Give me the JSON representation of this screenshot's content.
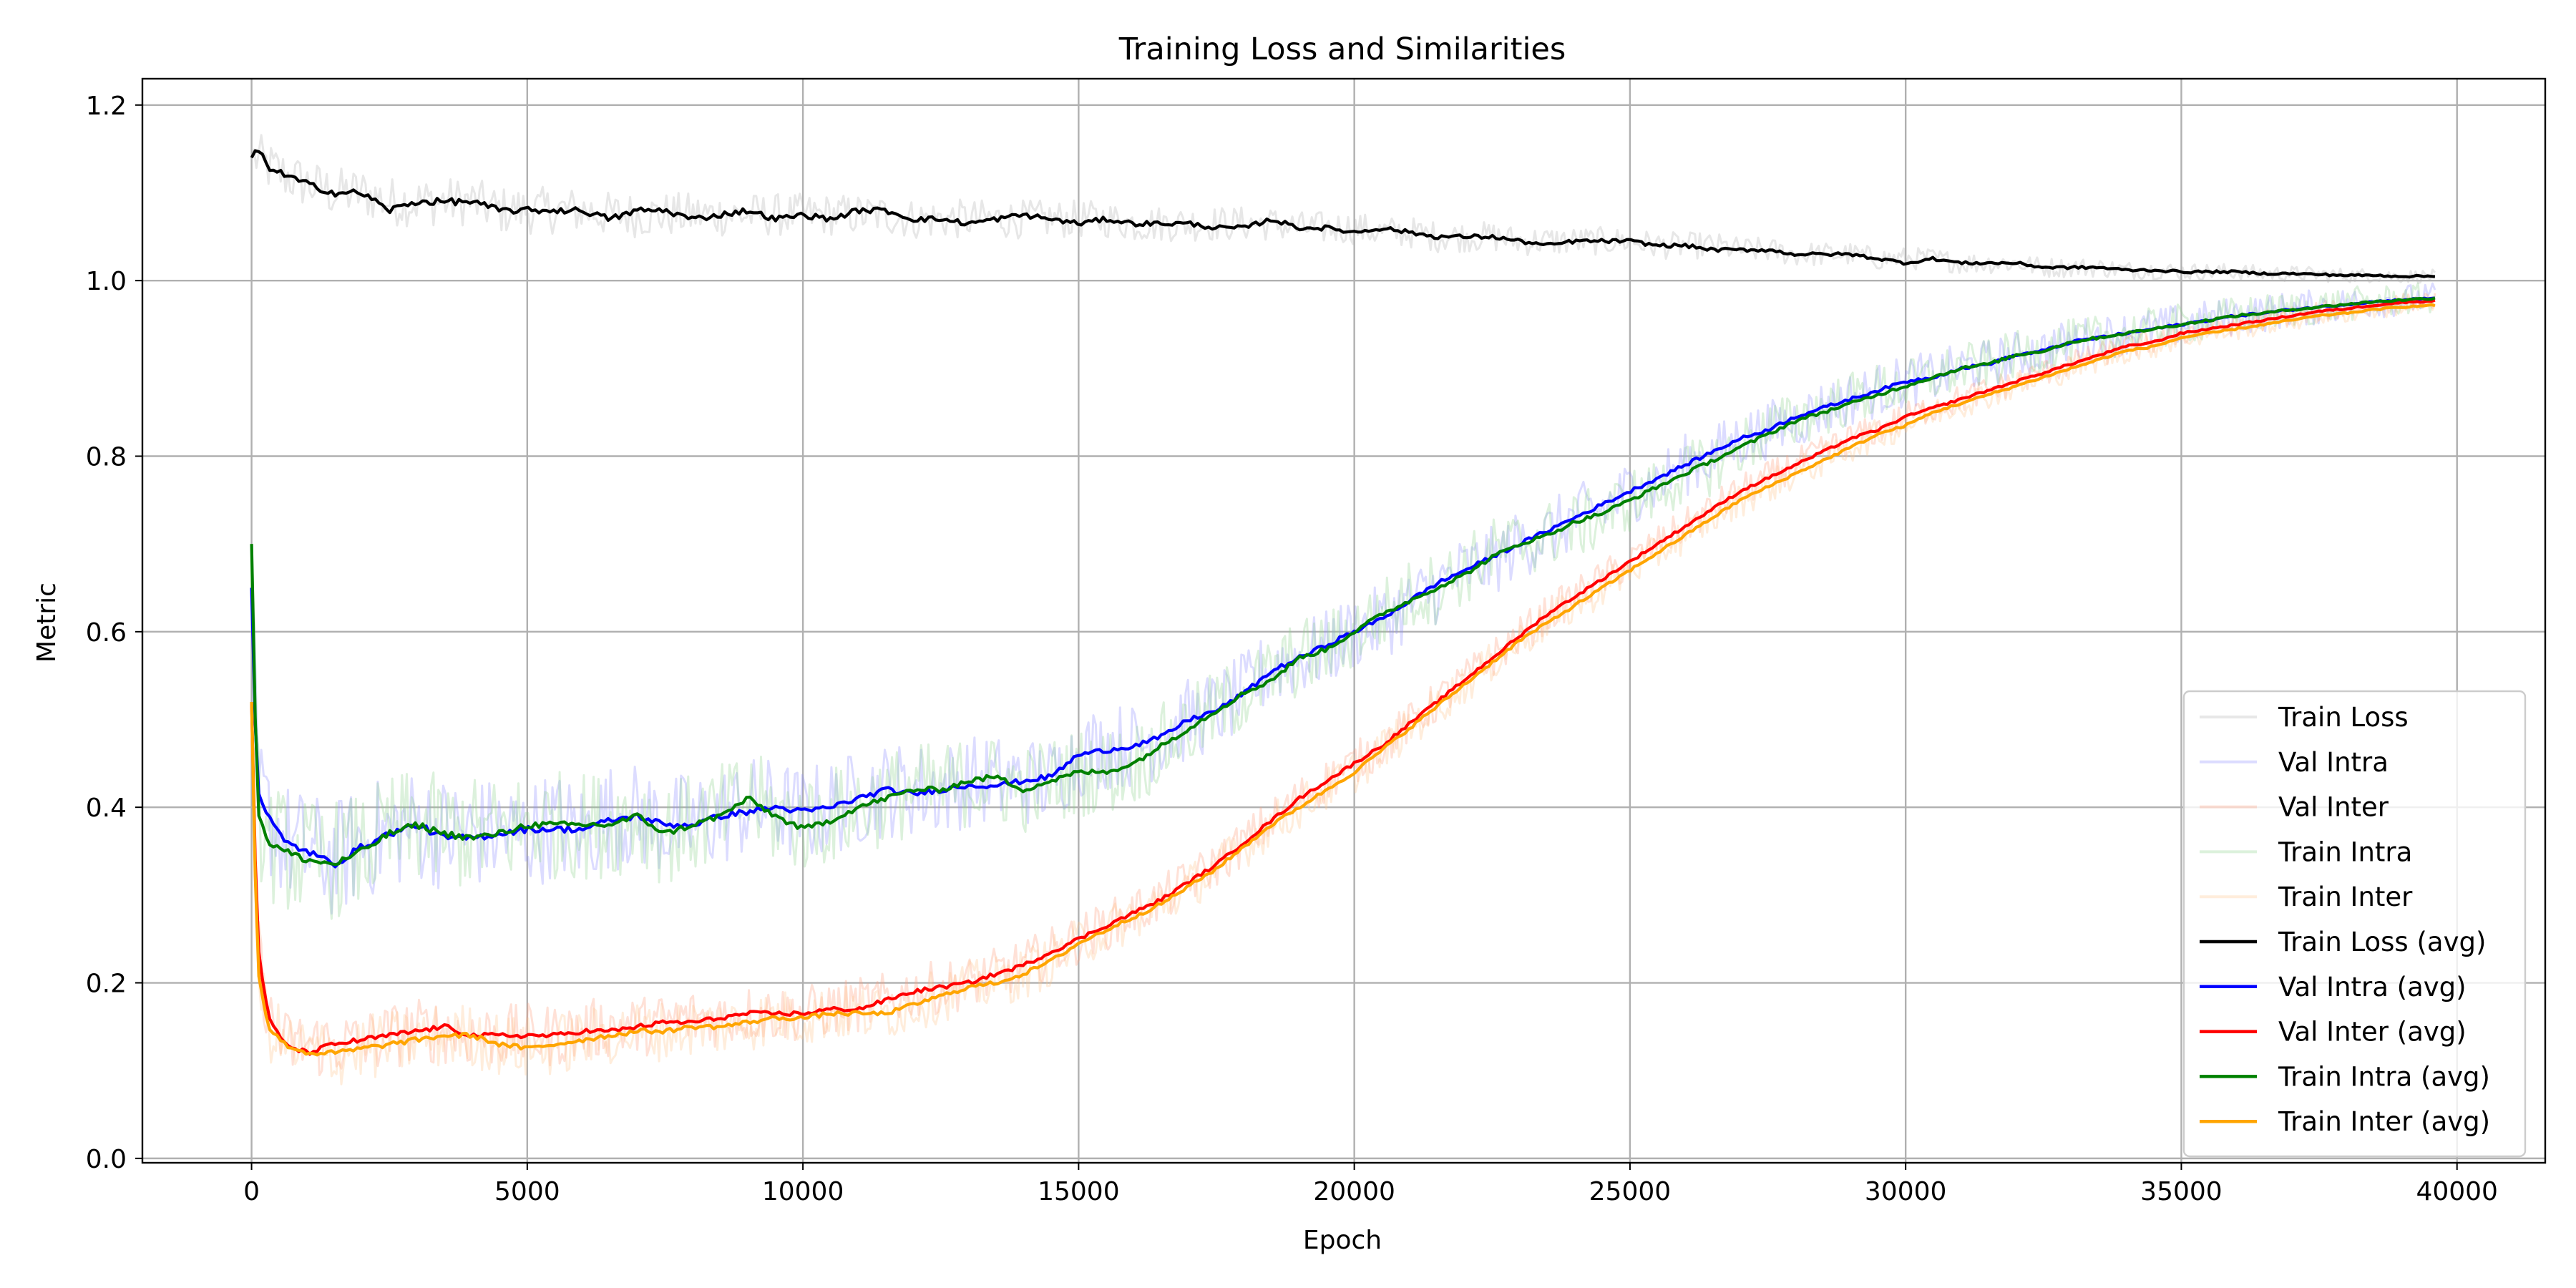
{
  "chart_data": {
    "type": "line",
    "title": "Training Loss and Similarities",
    "xlabel": "Epoch",
    "ylabel": "Metric",
    "xlim": [
      -1980,
      41600
    ],
    "ylim": [
      -0.005,
      1.23
    ],
    "xticks": [
      0,
      5000,
      10000,
      15000,
      20000,
      25000,
      30000,
      35000,
      40000
    ],
    "xtick_labels": [
      "0",
      "5000",
      "10000",
      "15000",
      "20000",
      "25000",
      "30000",
      "35000",
      "40000"
    ],
    "yticks": [
      0.0,
      0.2,
      0.4,
      0.6,
      0.8,
      1.0,
      1.2
    ],
    "ytick_labels": [
      "0.0",
      "0.2",
      "0.4",
      "0.6",
      "0.8",
      "1.0",
      "1.2"
    ],
    "grid": true,
    "legend_position": "lower-right",
    "x": [
      0,
      100,
      300,
      600,
      1000,
      1500,
      2000,
      2500,
      3000,
      3500,
      4000,
      4500,
      5000,
      5500,
      6000,
      6500,
      7000,
      7500,
      8000,
      8500,
      9000,
      9500,
      10000,
      10500,
      11000,
      11500,
      12000,
      12500,
      13000,
      13500,
      14000,
      14500,
      15000,
      15500,
      16000,
      16500,
      17000,
      17500,
      18000,
      18500,
      19000,
      19500,
      20000,
      20500,
      21000,
      21500,
      22000,
      22500,
      23000,
      23500,
      24000,
      24500,
      25000,
      25500,
      26000,
      26500,
      27000,
      27500,
      28000,
      28500,
      29000,
      29500,
      30000,
      30500,
      31000,
      31500,
      32000,
      32500,
      33000,
      33500,
      34000,
      34500,
      35000,
      35500,
      36000,
      36500,
      37000,
      37500,
      38000,
      38500,
      39000,
      39600
    ],
    "series": [
      {
        "name": "Train Loss",
        "color": "#b0b0b0",
        "opacity": 0.3,
        "noise": 0.03,
        "values": [
          1.14,
          1.14,
          1.13,
          1.12,
          1.11,
          1.1,
          1.1,
          1.09,
          1.09,
          1.09,
          1.09,
          1.08,
          1.08,
          1.08,
          1.08,
          1.075,
          1.075,
          1.075,
          1.075,
          1.075,
          1.075,
          1.075,
          1.075,
          1.075,
          1.075,
          1.075,
          1.07,
          1.07,
          1.07,
          1.07,
          1.07,
          1.07,
          1.07,
          1.07,
          1.065,
          1.065,
          1.065,
          1.065,
          1.065,
          1.065,
          1.06,
          1.06,
          1.06,
          1.055,
          1.055,
          1.05,
          1.05,
          1.05,
          1.045,
          1.045,
          1.045,
          1.045,
          1.045,
          1.04,
          1.04,
          1.04,
          1.035,
          1.035,
          1.03,
          1.03,
          1.03,
          1.025,
          1.025,
          1.025,
          1.02,
          1.02,
          1.02,
          1.015,
          1.015,
          1.015,
          1.012,
          1.012,
          1.01,
          1.01,
          1.01,
          1.008,
          1.008,
          1.007,
          1.006,
          1.006,
          1.005,
          1.005
        ]
      },
      {
        "name": "Val Intra",
        "color": "#8a8aff",
        "opacity": 0.3,
        "noise": 0.07,
        "values": [
          0.65,
          0.42,
          0.39,
          0.36,
          0.35,
          0.34,
          0.36,
          0.37,
          0.38,
          0.37,
          0.37,
          0.37,
          0.37,
          0.38,
          0.37,
          0.39,
          0.39,
          0.38,
          0.38,
          0.39,
          0.4,
          0.4,
          0.39,
          0.4,
          0.41,
          0.42,
          0.42,
          0.42,
          0.43,
          0.43,
          0.43,
          0.43,
          0.46,
          0.47,
          0.47,
          0.48,
          0.5,
          0.51,
          0.53,
          0.56,
          0.57,
          0.58,
          0.6,
          0.61,
          0.63,
          0.65,
          0.67,
          0.68,
          0.7,
          0.71,
          0.73,
          0.74,
          0.76,
          0.77,
          0.79,
          0.8,
          0.82,
          0.83,
          0.84,
          0.855,
          0.865,
          0.875,
          0.885,
          0.89,
          0.9,
          0.905,
          0.915,
          0.92,
          0.93,
          0.935,
          0.94,
          0.945,
          0.95,
          0.955,
          0.96,
          0.963,
          0.967,
          0.97,
          0.973,
          0.976,
          0.978,
          0.98
        ]
      },
      {
        "name": "Val Inter",
        "color": "#ff9a7a",
        "opacity": 0.3,
        "noise": 0.04,
        "values": [
          0.52,
          0.25,
          0.16,
          0.13,
          0.13,
          0.13,
          0.13,
          0.14,
          0.145,
          0.145,
          0.14,
          0.14,
          0.14,
          0.14,
          0.145,
          0.15,
          0.15,
          0.155,
          0.16,
          0.16,
          0.165,
          0.165,
          0.165,
          0.17,
          0.175,
          0.18,
          0.19,
          0.195,
          0.2,
          0.21,
          0.22,
          0.235,
          0.25,
          0.265,
          0.28,
          0.295,
          0.315,
          0.335,
          0.36,
          0.385,
          0.41,
          0.43,
          0.45,
          0.47,
          0.495,
          0.52,
          0.545,
          0.57,
          0.595,
          0.62,
          0.64,
          0.66,
          0.68,
          0.7,
          0.72,
          0.74,
          0.76,
          0.775,
          0.79,
          0.805,
          0.82,
          0.83,
          0.845,
          0.855,
          0.865,
          0.875,
          0.885,
          0.895,
          0.905,
          0.915,
          0.925,
          0.93,
          0.94,
          0.945,
          0.95,
          0.955,
          0.96,
          0.965,
          0.968,
          0.972,
          0.975,
          0.977
        ]
      },
      {
        "name": "Train Intra",
        "color": "#8ad08a",
        "opacity": 0.3,
        "noise": 0.07,
        "values": [
          0.7,
          0.4,
          0.36,
          0.35,
          0.34,
          0.34,
          0.35,
          0.37,
          0.38,
          0.37,
          0.37,
          0.37,
          0.38,
          0.38,
          0.38,
          0.38,
          0.39,
          0.37,
          0.38,
          0.39,
          0.41,
          0.39,
          0.38,
          0.39,
          0.4,
          0.41,
          0.42,
          0.42,
          0.43,
          0.43,
          0.42,
          0.43,
          0.44,
          0.44,
          0.45,
          0.47,
          0.49,
          0.51,
          0.53,
          0.55,
          0.57,
          0.58,
          0.6,
          0.62,
          0.64,
          0.65,
          0.67,
          0.69,
          0.7,
          0.71,
          0.72,
          0.73,
          0.75,
          0.76,
          0.78,
          0.79,
          0.81,
          0.83,
          0.84,
          0.855,
          0.865,
          0.875,
          0.88,
          0.89,
          0.9,
          0.905,
          0.915,
          0.92,
          0.93,
          0.935,
          0.94,
          0.945,
          0.95,
          0.955,
          0.96,
          0.963,
          0.967,
          0.97,
          0.973,
          0.976,
          0.978,
          0.98
        ]
      },
      {
        "name": "Train Inter",
        "color": "#ffc48a",
        "opacity": 0.3,
        "noise": 0.04,
        "values": [
          0.52,
          0.22,
          0.15,
          0.13,
          0.12,
          0.12,
          0.125,
          0.13,
          0.135,
          0.14,
          0.14,
          0.13,
          0.125,
          0.13,
          0.135,
          0.14,
          0.145,
          0.145,
          0.15,
          0.15,
          0.155,
          0.16,
          0.16,
          0.165,
          0.165,
          0.165,
          0.175,
          0.185,
          0.195,
          0.2,
          0.21,
          0.225,
          0.245,
          0.26,
          0.275,
          0.29,
          0.31,
          0.33,
          0.355,
          0.38,
          0.4,
          0.42,
          0.44,
          0.465,
          0.49,
          0.515,
          0.54,
          0.565,
          0.59,
          0.61,
          0.63,
          0.65,
          0.67,
          0.69,
          0.71,
          0.73,
          0.75,
          0.765,
          0.78,
          0.795,
          0.81,
          0.825,
          0.835,
          0.85,
          0.86,
          0.87,
          0.88,
          0.89,
          0.9,
          0.91,
          0.92,
          0.925,
          0.935,
          0.94,
          0.945,
          0.95,
          0.955,
          0.96,
          0.963,
          0.967,
          0.97,
          0.972
        ]
      },
      {
        "name": "Train Loss (avg)",
        "color": "#000000",
        "opacity": 1,
        "noise": 0.004,
        "values": [
          1.14,
          1.15,
          1.13,
          1.12,
          1.11,
          1.1,
          1.1,
          1.08,
          1.09,
          1.09,
          1.09,
          1.08,
          1.08,
          1.08,
          1.08,
          1.07,
          1.08,
          1.08,
          1.07,
          1.075,
          1.08,
          1.07,
          1.075,
          1.07,
          1.08,
          1.08,
          1.07,
          1.07,
          1.065,
          1.07,
          1.075,
          1.07,
          1.065,
          1.07,
          1.065,
          1.065,
          1.065,
          1.06,
          1.06,
          1.07,
          1.06,
          1.06,
          1.055,
          1.06,
          1.055,
          1.05,
          1.05,
          1.05,
          1.045,
          1.04,
          1.045,
          1.045,
          1.045,
          1.04,
          1.04,
          1.035,
          1.035,
          1.035,
          1.03,
          1.03,
          1.03,
          1.025,
          1.02,
          1.025,
          1.02,
          1.02,
          1.02,
          1.015,
          1.015,
          1.015,
          1.012,
          1.012,
          1.01,
          1.01,
          1.01,
          1.008,
          1.008,
          1.007,
          1.006,
          1.006,
          1.005,
          1.005
        ]
      },
      {
        "name": "Val Intra (avg)",
        "color": "#0000ff",
        "opacity": 1,
        "noise": 0.004,
        "values": [
          0.65,
          0.42,
          0.39,
          0.36,
          0.35,
          0.335,
          0.355,
          0.37,
          0.38,
          0.365,
          0.365,
          0.37,
          0.375,
          0.375,
          0.375,
          0.385,
          0.39,
          0.38,
          0.38,
          0.39,
          0.395,
          0.4,
          0.395,
          0.4,
          0.41,
          0.42,
          0.415,
          0.42,
          0.425,
          0.425,
          0.43,
          0.435,
          0.46,
          0.465,
          0.47,
          0.48,
          0.5,
          0.51,
          0.53,
          0.555,
          0.57,
          0.585,
          0.6,
          0.615,
          0.635,
          0.655,
          0.67,
          0.685,
          0.7,
          0.715,
          0.73,
          0.745,
          0.76,
          0.775,
          0.79,
          0.805,
          0.82,
          0.83,
          0.845,
          0.855,
          0.865,
          0.875,
          0.885,
          0.89,
          0.9,
          0.905,
          0.915,
          0.92,
          0.93,
          0.935,
          0.94,
          0.945,
          0.95,
          0.955,
          0.96,
          0.963,
          0.967,
          0.97,
          0.973,
          0.976,
          0.978,
          0.98
        ]
      },
      {
        "name": "Val Inter (avg)",
        "color": "#ff0000",
        "opacity": 1,
        "noise": 0.003,
        "values": [
          0.52,
          0.25,
          0.16,
          0.13,
          0.12,
          0.13,
          0.135,
          0.14,
          0.145,
          0.15,
          0.14,
          0.14,
          0.14,
          0.14,
          0.145,
          0.145,
          0.15,
          0.155,
          0.155,
          0.16,
          0.165,
          0.165,
          0.165,
          0.17,
          0.17,
          0.18,
          0.19,
          0.195,
          0.2,
          0.21,
          0.22,
          0.235,
          0.25,
          0.265,
          0.28,
          0.295,
          0.315,
          0.335,
          0.36,
          0.385,
          0.41,
          0.43,
          0.45,
          0.47,
          0.495,
          0.52,
          0.545,
          0.57,
          0.595,
          0.62,
          0.64,
          0.66,
          0.68,
          0.7,
          0.72,
          0.74,
          0.76,
          0.775,
          0.79,
          0.805,
          0.82,
          0.83,
          0.845,
          0.855,
          0.865,
          0.875,
          0.885,
          0.895,
          0.905,
          0.915,
          0.925,
          0.93,
          0.94,
          0.945,
          0.95,
          0.955,
          0.96,
          0.965,
          0.968,
          0.972,
          0.975,
          0.977
        ]
      },
      {
        "name": "Train Intra (avg)",
        "color": "#008000",
        "opacity": 1,
        "noise": 0.004,
        "values": [
          0.7,
          0.4,
          0.36,
          0.35,
          0.34,
          0.335,
          0.35,
          0.37,
          0.38,
          0.37,
          0.365,
          0.37,
          0.38,
          0.38,
          0.38,
          0.38,
          0.39,
          0.37,
          0.38,
          0.39,
          0.41,
          0.39,
          0.375,
          0.385,
          0.4,
          0.41,
          0.42,
          0.42,
          0.43,
          0.435,
          0.42,
          0.43,
          0.44,
          0.44,
          0.45,
          0.47,
          0.49,
          0.51,
          0.53,
          0.545,
          0.57,
          0.58,
          0.6,
          0.62,
          0.635,
          0.65,
          0.665,
          0.685,
          0.7,
          0.71,
          0.725,
          0.735,
          0.75,
          0.765,
          0.78,
          0.795,
          0.81,
          0.825,
          0.84,
          0.85,
          0.86,
          0.87,
          0.88,
          0.89,
          0.9,
          0.905,
          0.915,
          0.92,
          0.93,
          0.935,
          0.94,
          0.945,
          0.95,
          0.955,
          0.96,
          0.963,
          0.967,
          0.97,
          0.973,
          0.976,
          0.978,
          0.98
        ]
      },
      {
        "name": "Train Inter (avg)",
        "color": "#ffa500",
        "opacity": 1,
        "noise": 0.003,
        "values": [
          0.52,
          0.22,
          0.15,
          0.13,
          0.12,
          0.12,
          0.125,
          0.13,
          0.135,
          0.14,
          0.14,
          0.13,
          0.125,
          0.13,
          0.135,
          0.14,
          0.145,
          0.145,
          0.15,
          0.15,
          0.155,
          0.16,
          0.16,
          0.165,
          0.165,
          0.165,
          0.175,
          0.185,
          0.195,
          0.2,
          0.21,
          0.225,
          0.245,
          0.26,
          0.275,
          0.29,
          0.31,
          0.33,
          0.355,
          0.38,
          0.4,
          0.42,
          0.44,
          0.465,
          0.49,
          0.515,
          0.54,
          0.565,
          0.59,
          0.61,
          0.63,
          0.65,
          0.67,
          0.69,
          0.71,
          0.73,
          0.75,
          0.765,
          0.78,
          0.795,
          0.81,
          0.825,
          0.835,
          0.85,
          0.86,
          0.87,
          0.88,
          0.89,
          0.9,
          0.91,
          0.92,
          0.925,
          0.935,
          0.94,
          0.945,
          0.95,
          0.955,
          0.96,
          0.963,
          0.967,
          0.97,
          0.972
        ]
      }
    ]
  }
}
